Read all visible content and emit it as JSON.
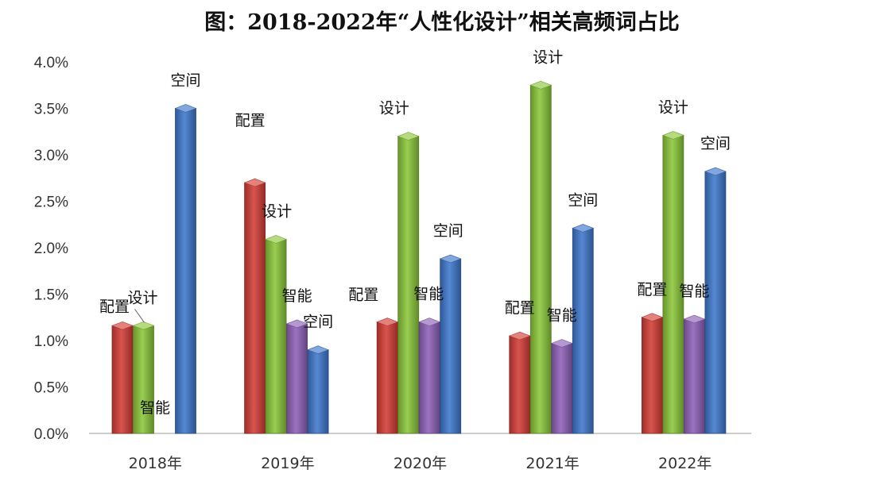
{
  "chart_data": {
    "type": "bar",
    "title": "图：2018-2022年“人性化设计”相关高频词占比",
    "categories": [
      "2018年",
      "2019年",
      "2020年",
      "2021年",
      "2022年"
    ],
    "ylim": [
      0,
      0.04
    ],
    "yticks": [
      "0.0%",
      "0.5%",
      "1.0%",
      "1.5%",
      "2.0%",
      "2.5%",
      "3.0%",
      "3.5%",
      "4.0%"
    ],
    "grid": false,
    "series": [
      {
        "label": "配置",
        "color": "#d43d36",
        "values": [
          0.0116,
          0.027,
          0.012,
          0.0105,
          0.0125
        ]
      },
      {
        "label": "设计",
        "color": "#8bc73a",
        "values": [
          0.0116,
          0.0209,
          0.032,
          0.0375,
          0.0321
        ]
      },
      {
        "label": "智能",
        "color": "#8e61b8",
        "values": [
          0.0,
          0.0118,
          0.012,
          0.0097,
          0.0123
        ]
      },
      {
        "label": "空间",
        "color": "#3f78cc",
        "values": [
          0.035,
          0.009,
          0.0188,
          0.0221,
          0.0282
        ]
      }
    ]
  }
}
